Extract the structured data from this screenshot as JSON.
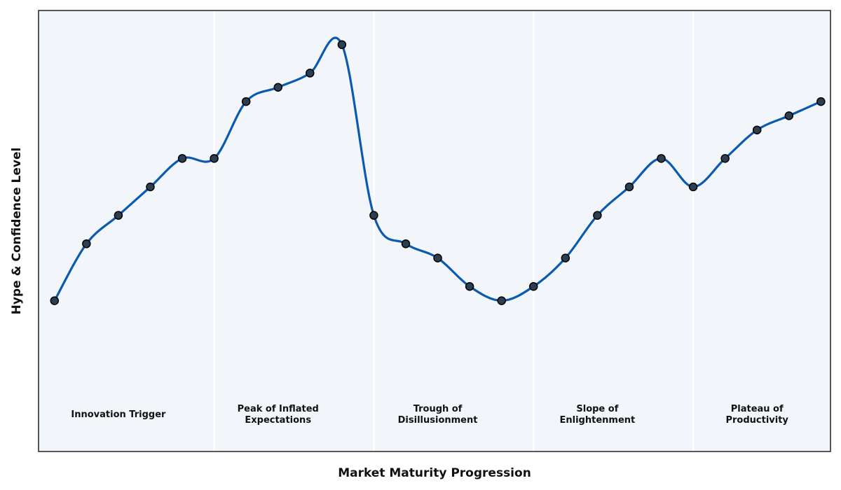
{
  "chart_data": {
    "type": "line",
    "title": "",
    "xlabel": "Market Maturity Progression",
    "ylabel": "Hype & Confidence Level",
    "xlim": [
      -0.5,
      24.3
    ],
    "ylim": [
      -0.65,
      7.1
    ],
    "grid": false,
    "colors": {
      "line": "#0a5aaf",
      "marker_fill": "#2c3e50",
      "marker_edge": "#000000",
      "plot_bg": "#f2f6fa",
      "phase_divider": "#ffffff",
      "frame": "#222222"
    },
    "phase_boundaries": [
      5,
      10,
      15,
      20
    ],
    "phases": [
      {
        "label": "Innovation Trigger",
        "x": 2,
        "y": 0
      },
      {
        "label": "Peak of Inflated\nExpectations",
        "x": 7,
        "y": 0
      },
      {
        "label": "Trough of\nDisillusionment",
        "x": 12,
        "y": 0
      },
      {
        "label": "Slope of\nEnlightenment",
        "x": 17,
        "y": 0
      },
      {
        "label": "Plateau of\nProductivity",
        "x": 22,
        "y": 0
      }
    ],
    "x": [
      0,
      1,
      2,
      3,
      4,
      5,
      6,
      7,
      8,
      9,
      10,
      11,
      12,
      13,
      14,
      15,
      16,
      17,
      18,
      19,
      20,
      21,
      22,
      23,
      24
    ],
    "values": [
      2.0,
      3.0,
      3.5,
      4.0,
      4.5,
      4.5,
      5.5,
      5.75,
      6.0,
      6.5,
      3.5,
      3.0,
      2.75,
      2.25,
      2.0,
      2.25,
      2.75,
      3.5,
      4.0,
      4.5,
      4.0,
      4.5,
      5.0,
      5.25,
      5.5
    ]
  }
}
